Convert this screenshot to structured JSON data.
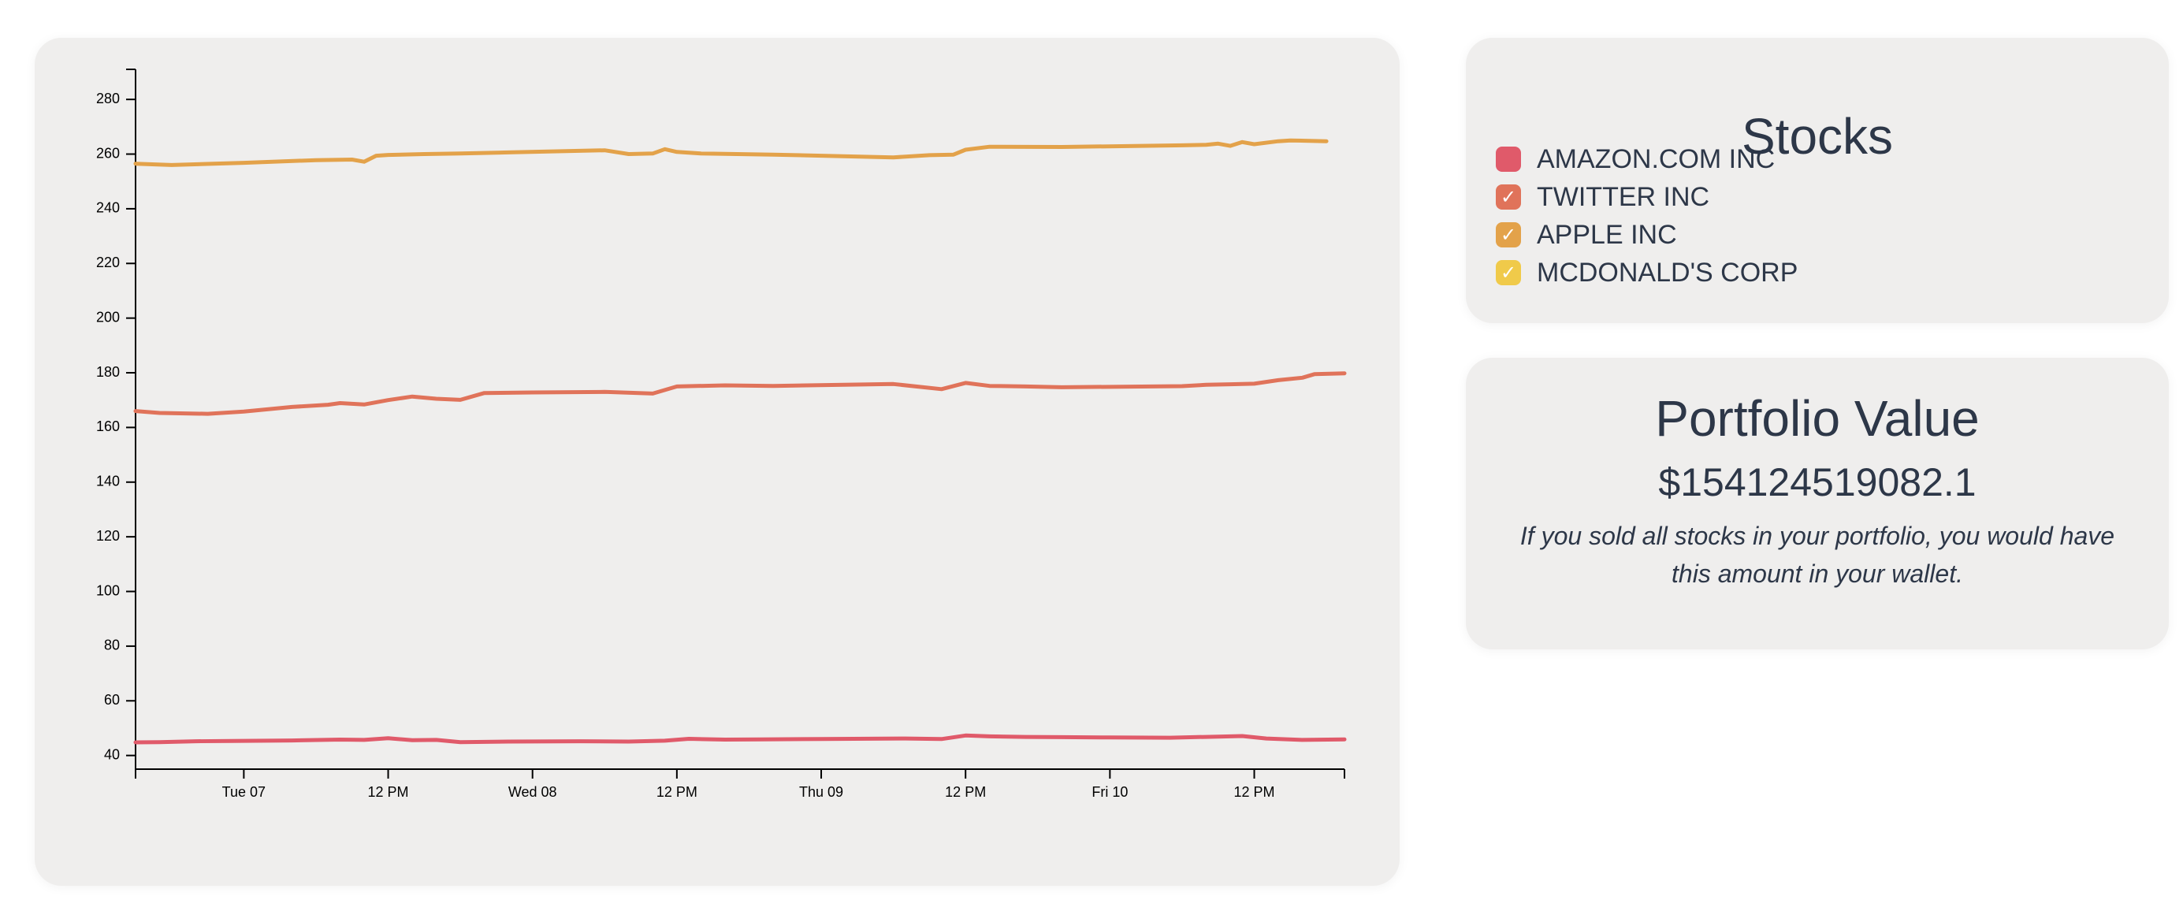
{
  "legend": {
    "title": "Stocks",
    "items": [
      {
        "label": "AMAZON.COM INC",
        "color": "#e05a6a",
        "checked": false
      },
      {
        "label": "TWITTER INC",
        "color": "#e0735a",
        "checked": true
      },
      {
        "label": "APPLE INC",
        "color": "#e3a24a",
        "checked": true
      },
      {
        "label": "MCDONALD'S CORP",
        "color": "#f0ca4a",
        "checked": true
      }
    ]
  },
  "portfolio": {
    "title": "Portfolio Value",
    "value": "$154124519082.1",
    "description": "If you sold all stocks in your portfolio, you would have this amount in your wallet."
  },
  "chart_data": {
    "type": "line",
    "title": "",
    "xlabel": "",
    "ylabel": "",
    "x_ticks": [
      "Tue 07",
      "12 PM",
      "Wed 08",
      "12 PM",
      "Thu 09",
      "12 PM",
      "Fri 10",
      "12 PM"
    ],
    "x_tick_times": [
      "2021-12-07T00:00",
      "2021-12-07T12:00",
      "2021-12-08T00:00",
      "2021-12-08T12:00",
      "2021-12-09T00:00",
      "2021-12-09T12:00",
      "2021-12-10T00:00",
      "2021-12-10T12:00"
    ],
    "xlim": [
      "2021-12-06T15:00",
      "2021-12-10T19:30"
    ],
    "y_ticks": [
      40,
      60,
      80,
      100,
      120,
      140,
      160,
      180,
      200,
      220,
      240,
      260,
      280
    ],
    "ylim": [
      35,
      291
    ],
    "grid": false,
    "series": [
      {
        "name": "AMAZON.COM INC",
        "color": "#e05a6a",
        "x": [
          "2021-12-06T15:00",
          "2021-12-06T17:00",
          "2021-12-06T20:00",
          "2021-12-06T23:00",
          "2021-12-07T04:00",
          "2021-12-07T08:00",
          "2021-12-07T10:00",
          "2021-12-07T12:00",
          "2021-12-07T14:00",
          "2021-12-07T16:00",
          "2021-12-07T18:00",
          "2021-12-07T22:00",
          "2021-12-08T04:00",
          "2021-12-08T08:00",
          "2021-12-08T11:00",
          "2021-12-08T13:00",
          "2021-12-08T16:00",
          "2021-12-08T19:00",
          "2021-12-09T00:00",
          "2021-12-09T07:00",
          "2021-12-09T10:00",
          "2021-12-09T12:00",
          "2021-12-09T14:00",
          "2021-12-09T17:00",
          "2021-12-09T20:00",
          "2021-12-10T00:00",
          "2021-12-10T05:00",
          "2021-12-10T09:00",
          "2021-12-10T11:00",
          "2021-12-10T13:00",
          "2021-12-10T16:00",
          "2021-12-10T19:30"
        ],
        "y": [
          44.8,
          44.9,
          45.2,
          45.3,
          45.5,
          45.8,
          45.7,
          46.3,
          45.6,
          45.7,
          44.9,
          45.1,
          45.2,
          45.1,
          45.4,
          46.1,
          45.8,
          45.9,
          46.0,
          46.2,
          46.0,
          47.3,
          47.0,
          46.8,
          46.7,
          46.6,
          46.5,
          46.9,
          47.1,
          46.2,
          45.7,
          45.9
        ]
      },
      {
        "name": "TWITTER INC",
        "color": "#e0735a",
        "x": [
          "2021-12-06T15:00",
          "2021-12-06T17:00",
          "2021-12-06T21:00",
          "2021-12-07T00:00",
          "2021-12-07T04:00",
          "2021-12-07T07:00",
          "2021-12-07T08:00",
          "2021-12-07T10:00",
          "2021-12-07T12:00",
          "2021-12-07T14:00",
          "2021-12-07T16:00",
          "2021-12-07T18:00",
          "2021-12-07T20:00",
          "2021-12-08T00:00",
          "2021-12-08T06:00",
          "2021-12-08T10:00",
          "2021-12-08T12:00",
          "2021-12-08T16:00",
          "2021-12-08T20:00",
          "2021-12-09T06:00",
          "2021-12-09T10:00",
          "2021-12-09T12:00",
          "2021-12-09T14:00",
          "2021-12-09T17:00",
          "2021-12-09T20:00",
          "2021-12-10T06:00",
          "2021-12-10T08:00",
          "2021-12-10T10:00",
          "2021-12-10T12:00",
          "2021-12-10T14:00",
          "2021-12-10T16:00",
          "2021-12-10T17:00",
          "2021-12-10T19:30"
        ],
        "y": [
          166.0,
          165.3,
          165.0,
          165.8,
          167.5,
          168.3,
          168.9,
          168.4,
          170.0,
          171.3,
          170.5,
          170.1,
          172.6,
          172.8,
          173.0,
          172.4,
          175.0,
          175.4,
          175.2,
          175.9,
          174.0,
          176.3,
          175.2,
          175.0,
          174.7,
          175.1,
          175.6,
          175.8,
          176.0,
          177.3,
          178.2,
          179.5,
          179.8
        ]
      },
      {
        "name": "APPLE INC",
        "color": "#e3a24a",
        "x": [
          "2021-12-06T15:00",
          "2021-12-06T18:00",
          "2021-12-07T00:00",
          "2021-12-07T06:00",
          "2021-12-07T09:00",
          "2021-12-07T10:00",
          "2021-12-07T11:00",
          "2021-12-07T12:00",
          "2021-12-07T15:00",
          "2021-12-07T18:00",
          "2021-12-07T22:00",
          "2021-12-08T06:00",
          "2021-12-08T08:00",
          "2021-12-08T10:00",
          "2021-12-08T11:00",
          "2021-12-08T12:00",
          "2021-12-08T14:00",
          "2021-12-08T20:00",
          "2021-12-09T06:00",
          "2021-12-09T09:00",
          "2021-12-09T11:00",
          "2021-12-09T12:00",
          "2021-12-09T14:00",
          "2021-12-09T20:00",
          "2021-12-10T06:00",
          "2021-12-10T08:00",
          "2021-12-10T09:00",
          "2021-12-10T10:00",
          "2021-12-10T11:00",
          "2021-12-10T12:00",
          "2021-12-10T14:00",
          "2021-12-10T15:00",
          "2021-12-10T18:00"
        ],
        "y": [
          256.5,
          256.0,
          256.8,
          257.8,
          258.0,
          257.2,
          259.4,
          259.7,
          260.0,
          260.2,
          260.6,
          261.4,
          260.0,
          260.2,
          261.8,
          260.8,
          260.2,
          259.8,
          258.8,
          259.6,
          259.8,
          261.6,
          262.7,
          262.6,
          263.2,
          263.4,
          263.8,
          263.0,
          264.4,
          263.6,
          264.7,
          265.0,
          264.7
        ]
      }
    ]
  }
}
